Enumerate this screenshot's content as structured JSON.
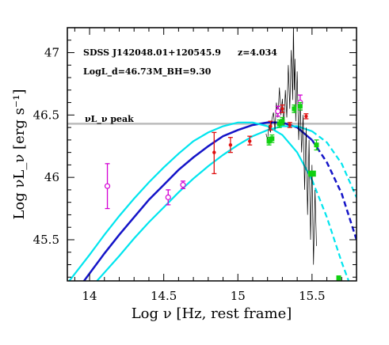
{
  "chart_data": {
    "type": "scatter",
    "title": "",
    "xlabel": "Log ν [Hz, rest frame]",
    "ylabel": "Log νL_ν [erg s⁻¹]",
    "xlim": [
      13.85,
      15.8
    ],
    "ylim": [
      45.17,
      47.2
    ],
    "x_ticks": [
      14,
      14.5,
      15,
      15.5
    ],
    "y_ticks": [
      45.5,
      46,
      46.5,
      47
    ],
    "annotations": {
      "object_name": "SDSS J142048.01+120545.9",
      "redshift": "z=4.034",
      "disk_luminosity": "LogL_d=46.73",
      "bh_mass": "M_BH=9.30",
      "peak_label": "νL_ν peak"
    },
    "peak_line_y": 46.43,
    "colors": {
      "model": "#1414c8",
      "model_band": "#00e5ee",
      "peak_line": "#bbbbbb",
      "magenta_points": "#d400d4",
      "red_points": "#e01010",
      "green_points": "#10d010",
      "spectrum": "#000000"
    },
    "series": [
      {
        "kind": "curve",
        "style": "solid-then-dashed",
        "color_key": "model",
        "x": [
          13.9,
          14.0,
          14.1,
          14.2,
          14.3,
          14.4,
          14.5,
          14.6,
          14.7,
          14.8,
          14.9,
          15.0,
          15.1,
          15.2,
          15.3,
          15.4,
          15.5,
          15.6,
          15.7,
          15.8
        ],
        "y": [
          45.07,
          45.23,
          45.39,
          45.54,
          45.68,
          45.82,
          45.94,
          46.06,
          46.16,
          46.25,
          46.33,
          46.38,
          46.42,
          46.44,
          46.44,
          46.4,
          46.3,
          46.12,
          45.87,
          45.5
        ],
        "dashed_from_x": 15.5
      },
      {
        "kind": "curve",
        "style": "solid-then-dashed",
        "color_key": "model_band",
        "x": [
          13.85,
          14.0,
          14.1,
          14.2,
          14.3,
          14.4,
          14.5,
          14.6,
          14.7,
          14.8,
          14.9,
          15.0,
          15.1,
          15.2,
          15.3,
          15.4,
          15.5,
          15.6,
          15.7,
          15.8
        ],
        "y": [
          45.15,
          45.38,
          45.54,
          45.69,
          45.83,
          45.96,
          46.08,
          46.19,
          46.29,
          46.36,
          46.41,
          46.44,
          46.44,
          46.41,
          46.34,
          46.2,
          45.98,
          45.68,
          45.32,
          45.0
        ],
        "dashed_from_x": 15.5
      },
      {
        "kind": "curve",
        "style": "solid-then-dashed",
        "color_key": "model_band",
        "x": [
          14.05,
          14.2,
          14.3,
          14.4,
          14.5,
          14.6,
          14.7,
          14.8,
          14.9,
          15.0,
          15.1,
          15.2,
          15.3,
          15.4,
          15.5,
          15.6,
          15.7,
          15.8
        ],
        "y": [
          45.17,
          45.37,
          45.51,
          45.64,
          45.76,
          45.88,
          45.99,
          46.09,
          46.18,
          46.26,
          46.33,
          46.38,
          46.41,
          46.41,
          46.37,
          46.28,
          46.11,
          45.84
        ],
        "dashed_from_x": 15.5
      },
      {
        "kind": "points",
        "color_key": "magenta_points",
        "marker": "open-circle",
        "points": [
          {
            "x": 14.12,
            "y": 45.93,
            "err_lo": 0.18,
            "err_hi": 0.18
          },
          {
            "x": 14.53,
            "y": 45.84,
            "err_lo": 0.06,
            "err_hi": 0.06
          },
          {
            "x": 14.63,
            "y": 45.94,
            "err_lo": 0.03,
            "err_hi": 0.03
          },
          {
            "x": 15.27,
            "y": 46.53,
            "err_lo": 0.04,
            "err_hi": 0.04
          },
          {
            "x": 15.42,
            "y": 46.6,
            "err_lo": 0.06,
            "err_hi": 0.06
          }
        ]
      },
      {
        "kind": "points",
        "color_key": "red_points",
        "marker": "dot",
        "points": [
          {
            "x": 14.84,
            "y": 46.2,
            "err_lo": 0.17,
            "err_hi": 0.16
          },
          {
            "x": 14.95,
            "y": 46.26,
            "err_lo": 0.06,
            "err_hi": 0.06
          },
          {
            "x": 15.08,
            "y": 46.29,
            "err_lo": 0.03,
            "err_hi": 0.04
          },
          {
            "x": 15.22,
            "y": 46.41,
            "err_lo": 0.03,
            "err_hi": 0.04
          },
          {
            "x": 15.3,
            "y": 46.55,
            "err_lo": 0.03,
            "err_hi": 0.03
          },
          {
            "x": 15.35,
            "y": 46.42,
            "err_lo": 0.02,
            "err_hi": 0.02
          },
          {
            "x": 15.46,
            "y": 46.49,
            "err_lo": 0.02,
            "err_hi": 0.02
          }
        ]
      },
      {
        "kind": "points",
        "color_key": "green_points",
        "marker": "square",
        "points": [
          {
            "x": 15.21,
            "y": 46.29,
            "err_lo": 0.03,
            "err_hi": 0.03
          },
          {
            "x": 15.23,
            "y": 46.31,
            "err_lo": 0.03,
            "err_hi": 0.03
          },
          {
            "x": 15.28,
            "y": 46.43,
            "err_lo": 0.03,
            "err_hi": 0.03
          },
          {
            "x": 15.3,
            "y": 46.45,
            "err_lo": 0.03,
            "err_hi": 0.03
          },
          {
            "x": 15.38,
            "y": 46.55,
            "err_lo": 0.03,
            "err_hi": 0.03
          },
          {
            "x": 15.42,
            "y": 46.57,
            "err_lo": 0.03,
            "err_hi": 0.03
          },
          {
            "x": 15.49,
            "y": 46.03,
            "err_lo": 0.02,
            "err_hi": 0.02
          },
          {
            "x": 15.51,
            "y": 46.03,
            "err_lo": 0.02,
            "err_hi": 0.02
          },
          {
            "x": 15.53,
            "y": 46.26,
            "err_lo": 0.04,
            "err_hi": 0.04
          },
          {
            "x": 15.68,
            "y": 45.19,
            "err_lo": 0.02,
            "err_hi": 0.02
          }
        ]
      },
      {
        "kind": "spectrum",
        "color_key": "spectrum",
        "x": [
          15.19,
          15.2,
          15.21,
          15.22,
          15.23,
          15.24,
          15.25,
          15.26,
          15.27,
          15.28,
          15.29,
          15.3,
          15.31,
          15.32,
          15.33,
          15.34,
          15.35,
          15.36,
          15.37,
          15.375,
          15.38,
          15.385,
          15.39,
          15.4,
          15.41,
          15.42,
          15.43,
          15.44,
          15.45,
          15.46,
          15.47,
          15.48,
          15.49,
          15.5,
          15.51,
          15.52,
          15.53
        ],
        "y": [
          46.35,
          46.3,
          46.42,
          46.36,
          46.47,
          46.52,
          46.38,
          46.6,
          46.48,
          46.72,
          46.5,
          46.63,
          46.42,
          46.7,
          46.48,
          46.9,
          46.55,
          47.02,
          46.62,
          47.25,
          46.7,
          46.95,
          46.45,
          46.85,
          46.3,
          46.6,
          46.2,
          46.5,
          45.9,
          46.4,
          45.7,
          46.3,
          45.5,
          46.1,
          45.3,
          45.9,
          45.45
        ]
      }
    ]
  }
}
